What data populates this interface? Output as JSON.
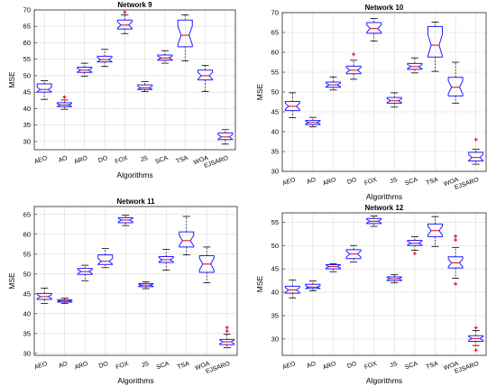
{
  "chart_data": [
    {
      "type": "box",
      "title": "Network 9",
      "xlabel": "Algorithms",
      "ylabel": "MSE",
      "ylim": [
        27.5,
        70
      ],
      "yticks": [
        30,
        35,
        40,
        45,
        50,
        55,
        60,
        65,
        70
      ],
      "categories": [
        "AEO",
        "AO",
        "ARO",
        "DO",
        "FOX",
        "JS",
        "SCA",
        "TSA",
        "WOA",
        "EJSARO"
      ],
      "boxes": [
        {
          "category": "AEO",
          "min": 42.8,
          "q1": 45.0,
          "median": 45.8,
          "q3": 47.5,
          "max": 48.5,
          "outliers": []
        },
        {
          "category": "AO",
          "min": 39.8,
          "q1": 40.6,
          "median": 41.1,
          "q3": 41.8,
          "max": 42.6,
          "outliers": [
            43.5
          ]
        },
        {
          "category": "ARO",
          "min": 49.8,
          "q1": 51.0,
          "median": 51.7,
          "q3": 52.6,
          "max": 53.8,
          "outliers": []
        },
        {
          "category": "DO",
          "min": 52.8,
          "q1": 54.2,
          "median": 54.9,
          "q3": 55.9,
          "max": 58.0,
          "outliers": []
        },
        {
          "category": "FOX",
          "min": 62.8,
          "q1": 64.2,
          "median": 65.4,
          "q3": 66.9,
          "max": 68.5,
          "outliers": [
            69.3
          ]
        },
        {
          "category": "JS",
          "min": 45.2,
          "q1": 45.8,
          "median": 46.3,
          "q3": 47.2,
          "max": 48.2,
          "outliers": []
        },
        {
          "category": "SCA",
          "min": 53.8,
          "q1": 54.7,
          "median": 55.4,
          "q3": 56.3,
          "max": 57.6,
          "outliers": []
        },
        {
          "category": "TSA",
          "min": 54.5,
          "q1": 58.8,
          "median": 62.3,
          "q3": 66.9,
          "max": 68.5,
          "outliers": []
        },
        {
          "category": "WOA",
          "min": 45.2,
          "q1": 48.7,
          "median": 50.0,
          "q3": 51.7,
          "max": 53.1,
          "outliers": []
        },
        {
          "category": "EJSARO",
          "min": 29.2,
          "q1": 30.6,
          "median": 31.4,
          "q3": 32.6,
          "max": 33.6,
          "outliers": []
        }
      ]
    },
    {
      "type": "box",
      "title": "Network 10",
      "xlabel": "Algorithms",
      "ylabel": "MSE",
      "ylim": [
        30,
        70
      ],
      "yticks": [
        30,
        35,
        40,
        45,
        50,
        55,
        60,
        65,
        70
      ],
      "categories": [
        "AEO",
        "AO",
        "ARO",
        "DO",
        "FOX",
        "JS",
        "SCA",
        "TSA",
        "WOA",
        "EJSARO"
      ],
      "boxes": [
        {
          "category": "AEO",
          "min": 43.5,
          "q1": 45.3,
          "median": 46.4,
          "q3": 47.6,
          "max": 49.8,
          "outliers": []
        },
        {
          "category": "AO",
          "min": 41.2,
          "q1": 41.8,
          "median": 42.3,
          "q3": 42.8,
          "max": 43.6,
          "outliers": []
        },
        {
          "category": "ARO",
          "min": 50.5,
          "q1": 51.2,
          "median": 51.8,
          "q3": 52.5,
          "max": 53.8,
          "outliers": []
        },
        {
          "category": "DO",
          "min": 53.2,
          "q1": 54.6,
          "median": 55.5,
          "q3": 56.5,
          "max": 58.0,
          "outliers": [
            59.5
          ]
        },
        {
          "category": "FOX",
          "min": 62.8,
          "q1": 64.8,
          "median": 66.0,
          "q3": 67.5,
          "max": 68.5,
          "outliers": []
        },
        {
          "category": "JS",
          "min": 46.2,
          "q1": 47.2,
          "median": 47.8,
          "q3": 48.6,
          "max": 49.8,
          "outliers": []
        },
        {
          "category": "SCA",
          "min": 54.8,
          "q1": 55.7,
          "median": 56.4,
          "q3": 57.2,
          "max": 58.6,
          "outliers": []
        },
        {
          "category": "TSA",
          "min": 55.2,
          "q1": 58.8,
          "median": 61.8,
          "q3": 66.5,
          "max": 67.6,
          "outliers": []
        },
        {
          "category": "WOA",
          "min": 47.2,
          "q1": 49.0,
          "median": 51.2,
          "q3": 53.7,
          "max": 57.5,
          "outliers": []
        },
        {
          "category": "EJSARO",
          "min": 31.8,
          "q1": 32.6,
          "median": 33.5,
          "q3": 34.8,
          "max": 35.6,
          "outliers": [
            38.0
          ]
        }
      ]
    },
    {
      "type": "box",
      "title": "Network 11",
      "xlabel": "Algorithms",
      "ylabel": "MSE",
      "ylim": [
        29.5,
        67
      ],
      "yticks": [
        30,
        35,
        40,
        45,
        50,
        55,
        60,
        65
      ],
      "categories": [
        "AEO",
        "AO",
        "ARO",
        "DO",
        "FOX",
        "JS",
        "SCA",
        "TSA",
        "WOA",
        "EJSARO"
      ],
      "boxes": [
        {
          "category": "AEO",
          "min": 42.6,
          "q1": 43.6,
          "median": 44.3,
          "q3": 45.1,
          "max": 46.4,
          "outliers": []
        },
        {
          "category": "AO",
          "min": 42.6,
          "q1": 42.9,
          "median": 43.2,
          "q3": 43.5,
          "max": 43.9,
          "outliers": []
        },
        {
          "category": "ARO",
          "min": 48.3,
          "q1": 49.9,
          "median": 50.6,
          "q3": 51.4,
          "max": 52.2,
          "outliers": []
        },
        {
          "category": "DO",
          "min": 51.6,
          "q1": 52.4,
          "median": 53.2,
          "q3": 54.8,
          "max": 56.4,
          "outliers": []
        },
        {
          "category": "FOX",
          "min": 62.2,
          "q1": 62.9,
          "median": 63.6,
          "q3": 64.2,
          "max": 64.8,
          "outliers": []
        },
        {
          "category": "JS",
          "min": 46.3,
          "q1": 46.8,
          "median": 47.2,
          "q3": 47.6,
          "max": 48.0,
          "outliers": []
        },
        {
          "category": "SCA",
          "min": 51.0,
          "q1": 52.9,
          "median": 53.6,
          "q3": 54.4,
          "max": 56.2,
          "outliers": []
        },
        {
          "category": "TSA",
          "min": 54.8,
          "q1": 56.8,
          "median": 58.4,
          "q3": 60.6,
          "max": 64.5,
          "outliers": []
        },
        {
          "category": "WOA",
          "min": 47.8,
          "q1": 50.4,
          "median": 52.5,
          "q3": 54.6,
          "max": 56.8,
          "outliers": []
        },
        {
          "category": "EJSARO",
          "min": 31.4,
          "q1": 32.2,
          "median": 32.9,
          "q3": 33.5,
          "max": 34.8,
          "outliers": [
            35.6,
            36.5
          ]
        }
      ]
    },
    {
      "type": "box",
      "title": "Network 12",
      "xlabel": "Algorithms",
      "ylabel": "MSE",
      "ylim": [
        26.5,
        57
      ],
      "yticks": [
        30,
        35,
        40,
        45,
        50,
        55
      ],
      "categories": [
        "AEO",
        "AO",
        "ARO",
        "DO",
        "FOX",
        "JS",
        "SCA",
        "TSA",
        "WOA",
        "EJSARO"
      ],
      "boxes": [
        {
          "category": "AEO",
          "min": 38.8,
          "q1": 39.8,
          "median": 40.5,
          "q3": 41.3,
          "max": 42.6,
          "outliers": []
        },
        {
          "category": "AO",
          "min": 40.3,
          "q1": 40.8,
          "median": 41.1,
          "q3": 41.7,
          "max": 42.4,
          "outliers": []
        },
        {
          "category": "ARO",
          "min": 44.4,
          "q1": 45.0,
          "median": 45.5,
          "q3": 45.9,
          "max": 46.1,
          "outliers": []
        },
        {
          "category": "DO",
          "min": 46.5,
          "q1": 47.2,
          "median": 48.2,
          "q3": 49.1,
          "max": 50.0,
          "outliers": []
        },
        {
          "category": "FOX",
          "min": 54.1,
          "q1": 54.7,
          "median": 55.2,
          "q3": 55.8,
          "max": 56.3,
          "outliers": []
        },
        {
          "category": "JS",
          "min": 42.0,
          "q1": 42.5,
          "median": 42.9,
          "q3": 43.3,
          "max": 43.8,
          "outliers": []
        },
        {
          "category": "SCA",
          "min": 49.0,
          "q1": 50.0,
          "median": 50.5,
          "q3": 51.1,
          "max": 51.9,
          "outliers": [
            48.3
          ]
        },
        {
          "category": "TSA",
          "min": 49.8,
          "q1": 51.9,
          "median": 53.2,
          "q3": 54.6,
          "max": 56.2,
          "outliers": []
        },
        {
          "category": "WOA",
          "min": 43.0,
          "q1": 45.2,
          "median": 46.3,
          "q3": 47.6,
          "max": 49.6,
          "outliers": [
            41.8,
            51.2,
            52.0
          ]
        },
        {
          "category": "EJSARO",
          "min": 28.6,
          "q1": 29.5,
          "median": 30.1,
          "q3": 30.7,
          "max": 31.8,
          "outliers": [
            27.6,
            32.4
          ]
        }
      ]
    }
  ],
  "colors": {
    "box": "#1f1fff",
    "median": "#e8112d",
    "whisker": "#000000",
    "outlier": "#e8112d",
    "grid": "#d9d9d9",
    "axis": "#262626"
  }
}
